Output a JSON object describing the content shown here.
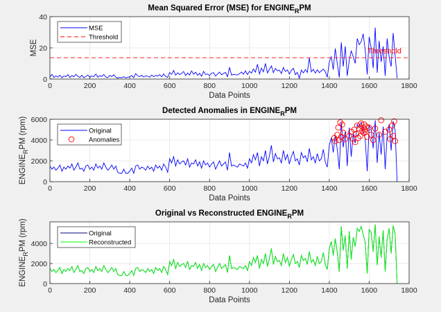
{
  "chart_data": [
    {
      "type": "line",
      "title": {
        "prefix": "Mean Squared Error (MSE) for ENGINE",
        "sub": "R",
        "suffix": "PM"
      },
      "xlabel": "Data Points",
      "ylabel": {
        "prefix": "MSE",
        "sub": "",
        "suffix": ""
      },
      "xlim": [
        0,
        1800
      ],
      "ylim": [
        0,
        40
      ],
      "xticks": [
        0,
        200,
        400,
        600,
        800,
        1000,
        1200,
        1400,
        1600,
        1800
      ],
      "yticks": [
        0,
        20,
        40
      ],
      "grid": true,
      "legend": {
        "placement": "top-left",
        "entries": [
          "MSE",
          "Threshold"
        ]
      },
      "threshold": 13.7,
      "threshold_label": "Threshold",
      "x_step": 10,
      "series": [
        {
          "name": "MSE",
          "color": "#0000ff",
          "values": [
            1.5,
            3,
            1,
            2,
            1.2,
            2.5,
            0.8,
            2,
            1.5,
            2.8,
            1,
            2.2,
            1.4,
            3,
            1.8,
            1,
            2.4,
            0.9,
            1.6,
            2.6,
            1.1,
            2,
            1.5,
            3.2,
            1.2,
            2.1,
            1.7,
            2.9,
            1.3,
            1,
            2.3,
            1.6,
            2.7,
            1.2,
            0.6,
            1.1,
            0.8,
            1.5,
            0.7,
            1.2,
            1.4,
            2.2,
            0.9,
            3.5,
            2,
            1.6,
            2.4,
            1.3,
            2.1,
            1.8,
            1.2,
            2.6,
            1.5,
            2.3,
            1.9,
            2.8,
            1.4,
            3.3,
            1.7,
            1.1,
            4.2,
            3,
            5.5,
            2.5,
            4,
            2.8,
            3.6,
            4.8,
            2.2,
            3.9,
            2.6,
            5.2,
            3.1,
            4.4,
            2.4,
            3.7,
            1.8,
            4.9,
            2.9,
            3.3,
            2.2,
            3.8,
            4.1,
            1.9,
            3.2,
            4.5,
            2.7,
            3.6,
            4.2,
            1.5,
            7.5,
            2.5,
            3,
            2.8,
            2.6,
            3.4,
            4.5,
            3.1,
            5.2,
            2.9,
            5,
            3.8,
            6.5,
            4.4,
            9.5,
            3.2,
            7,
            4.6,
            10,
            3.9,
            6.2,
            8.4,
            4.1,
            6.8,
            5.3,
            5.8,
            3.5,
            7.4,
            4.8,
            5.9,
            3.1,
            5.6,
            6.9,
            2.8,
            4.3,
            0.5,
            5.8,
            3.9,
            6.1,
            4.2,
            13.5,
            4.6,
            6.2,
            3.8,
            5.9,
            4.1,
            5.3,
            6.4,
            4.7,
            1.2,
            11,
            14.5,
            6,
            19.5,
            10,
            1,
            23.5,
            8,
            21,
            2,
            12,
            18,
            14.5,
            10,
            26,
            22,
            24,
            29,
            18.5,
            3,
            27,
            20,
            7,
            33,
            4,
            24.5,
            11,
            21,
            2,
            26,
            14,
            8,
            29.5,
            15,
            0.5
          ]
        },
        {
          "name": "Threshold",
          "color": "#ff0000",
          "style": "dashed"
        }
      ]
    },
    {
      "type": "line",
      "title": {
        "prefix": "Detected Anomalies in ENGINE",
        "sub": "R",
        "suffix": "PM"
      },
      "xlabel": "Data Points",
      "ylabel": {
        "prefix": "ENGINE",
        "sub": "R",
        "suffix": "PM (rpm)"
      },
      "xlim": [
        0,
        1800
      ],
      "ylim": [
        0,
        6000
      ],
      "xticks": [
        0,
        200,
        400,
        600,
        800,
        1000,
        1200,
        1400,
        1600,
        1800
      ],
      "yticks": [
        0,
        2000,
        4000,
        6000
      ],
      "grid": true,
      "legend": {
        "placement": "top-left",
        "entries": [
          "Original",
          "Anomalies"
        ]
      },
      "x_step": 10,
      "series": [
        {
          "name": "Original",
          "color": "#0000ff",
          "values": [
            1500,
            1200,
            1400,
            1100,
            1300,
            1600,
            1000,
            1400,
            1200,
            1500,
            1300,
            1700,
            1100,
            1400,
            1800,
            1200,
            1300,
            1000,
            1500,
            1600,
            1200,
            1400,
            1100,
            1700,
            1300,
            1500,
            1200,
            1800,
            1400,
            1100,
            1300,
            1600,
            1200,
            1500,
            900,
            800,
            800,
            1200,
            800,
            800,
            1000,
            1300,
            800,
            1500,
            1600,
            1200,
            1400,
            1300,
            1100,
            1500,
            1200,
            1400,
            1000,
            1600,
            1300,
            1500,
            1100,
            1700,
            1400,
            900,
            2200,
            1800,
            2400,
            1500,
            2100,
            1700,
            1900,
            2000,
            1600,
            2200,
            1400,
            1800,
            1700,
            2100,
            1500,
            1900,
            1300,
            2000,
            1600,
            1800,
            1400,
            1700,
            1900,
            1200,
            1600,
            2000,
            1500,
            1700,
            1900,
            1100,
            2800,
            1500,
            1600,
            1500,
            1400,
            1700,
            1600,
            1500,
            1800,
            1300,
            2200,
            1800,
            2600,
            2100,
            2800,
            1500,
            2400,
            2000,
            3000,
            1700,
            2500,
            3500,
            1900,
            2700,
            2200,
            2300,
            1800,
            3000,
            2100,
            2600,
            1700,
            2400,
            2900,
            2000,
            2200,
            1600,
            2800,
            2300,
            2500,
            1900,
            3200,
            2100,
            2400,
            1800,
            2700,
            2000,
            2200,
            3100,
            1900,
            1400,
            3500,
            4200,
            2800,
            4500,
            3100,
            1200,
            5700,
            3300,
            4800,
            1500,
            5200,
            2400,
            4600,
            3700,
            5500,
            5200,
            5700,
            4900,
            4100,
            1000,
            5400,
            5100,
            3200,
            5900,
            1800,
            4700,
            2600,
            5300,
            1200,
            4400,
            5500,
            3000,
            5800,
            4900,
            0
          ]
        },
        {
          "name": "Anomalies",
          "color": "#ff0000",
          "marker": "circle",
          "points": [
            [
              1425,
              4200
            ],
            [
              1430,
              3900
            ],
            [
              1440,
              4500
            ],
            [
              1445,
              5200
            ],
            [
              1450,
              4000
            ],
            [
              1455,
              5700
            ],
            [
              1460,
              4300
            ],
            [
              1465,
              5500
            ],
            [
              1470,
              4700
            ],
            [
              1480,
              4100
            ],
            [
              1500,
              4400
            ],
            [
              1510,
              4800
            ],
            [
              1520,
              4100
            ],
            [
              1525,
              5000
            ],
            [
              1530,
              3800
            ],
            [
              1535,
              4600
            ],
            [
              1540,
              5400
            ],
            [
              1545,
              4200
            ],
            [
              1550,
              5100
            ],
            [
              1555,
              4400
            ],
            [
              1560,
              5600
            ],
            [
              1565,
              4900
            ],
            [
              1570,
              5200
            ],
            [
              1572,
              4700
            ],
            [
              1575,
              5500
            ],
            [
              1578,
              5000
            ],
            [
              1580,
              4800
            ],
            [
              1585,
              5300
            ],
            [
              1590,
              4300
            ],
            [
              1600,
              5200
            ],
            [
              1610,
              4500
            ],
            [
              1620,
              4000
            ],
            [
              1630,
              5100
            ],
            [
              1650,
              4500
            ],
            [
              1660,
              5900
            ],
            [
              1680,
              4800
            ],
            [
              1700,
              5000
            ],
            [
              1705,
              4100
            ],
            [
              1715,
              5400
            ],
            [
              1720,
              4400
            ],
            [
              1725,
              5800
            ],
            [
              1730,
              3900
            ]
          ]
        }
      ]
    },
    {
      "type": "line",
      "title": {
        "prefix": "Original vs Reconstructed ENGINE",
        "sub": "R",
        "suffix": "PM"
      },
      "xlabel": "Data Points",
      "ylabel": {
        "prefix": "ENGINE",
        "sub": "R",
        "suffix": "PM (rpm)"
      },
      "xlim": [
        0,
        1800
      ],
      "ylim": [
        0,
        6150
      ],
      "xticks": [
        0,
        200,
        400,
        600,
        800,
        1000,
        1200,
        1400,
        1600,
        1800
      ],
      "yticks": [
        0,
        2000,
        4000
      ],
      "grid": true,
      "legend": {
        "placement": "top-left",
        "entries": [
          "Original",
          "Reconstructed"
        ]
      },
      "x_step": 10,
      "series": [
        {
          "name": "Original",
          "color": "#00007f",
          "same_as": "Detected Anomalies Original"
        },
        {
          "name": "Reconstructed",
          "color": "#00ff00",
          "same_as": "Detected Anomalies Original"
        }
      ]
    }
  ]
}
